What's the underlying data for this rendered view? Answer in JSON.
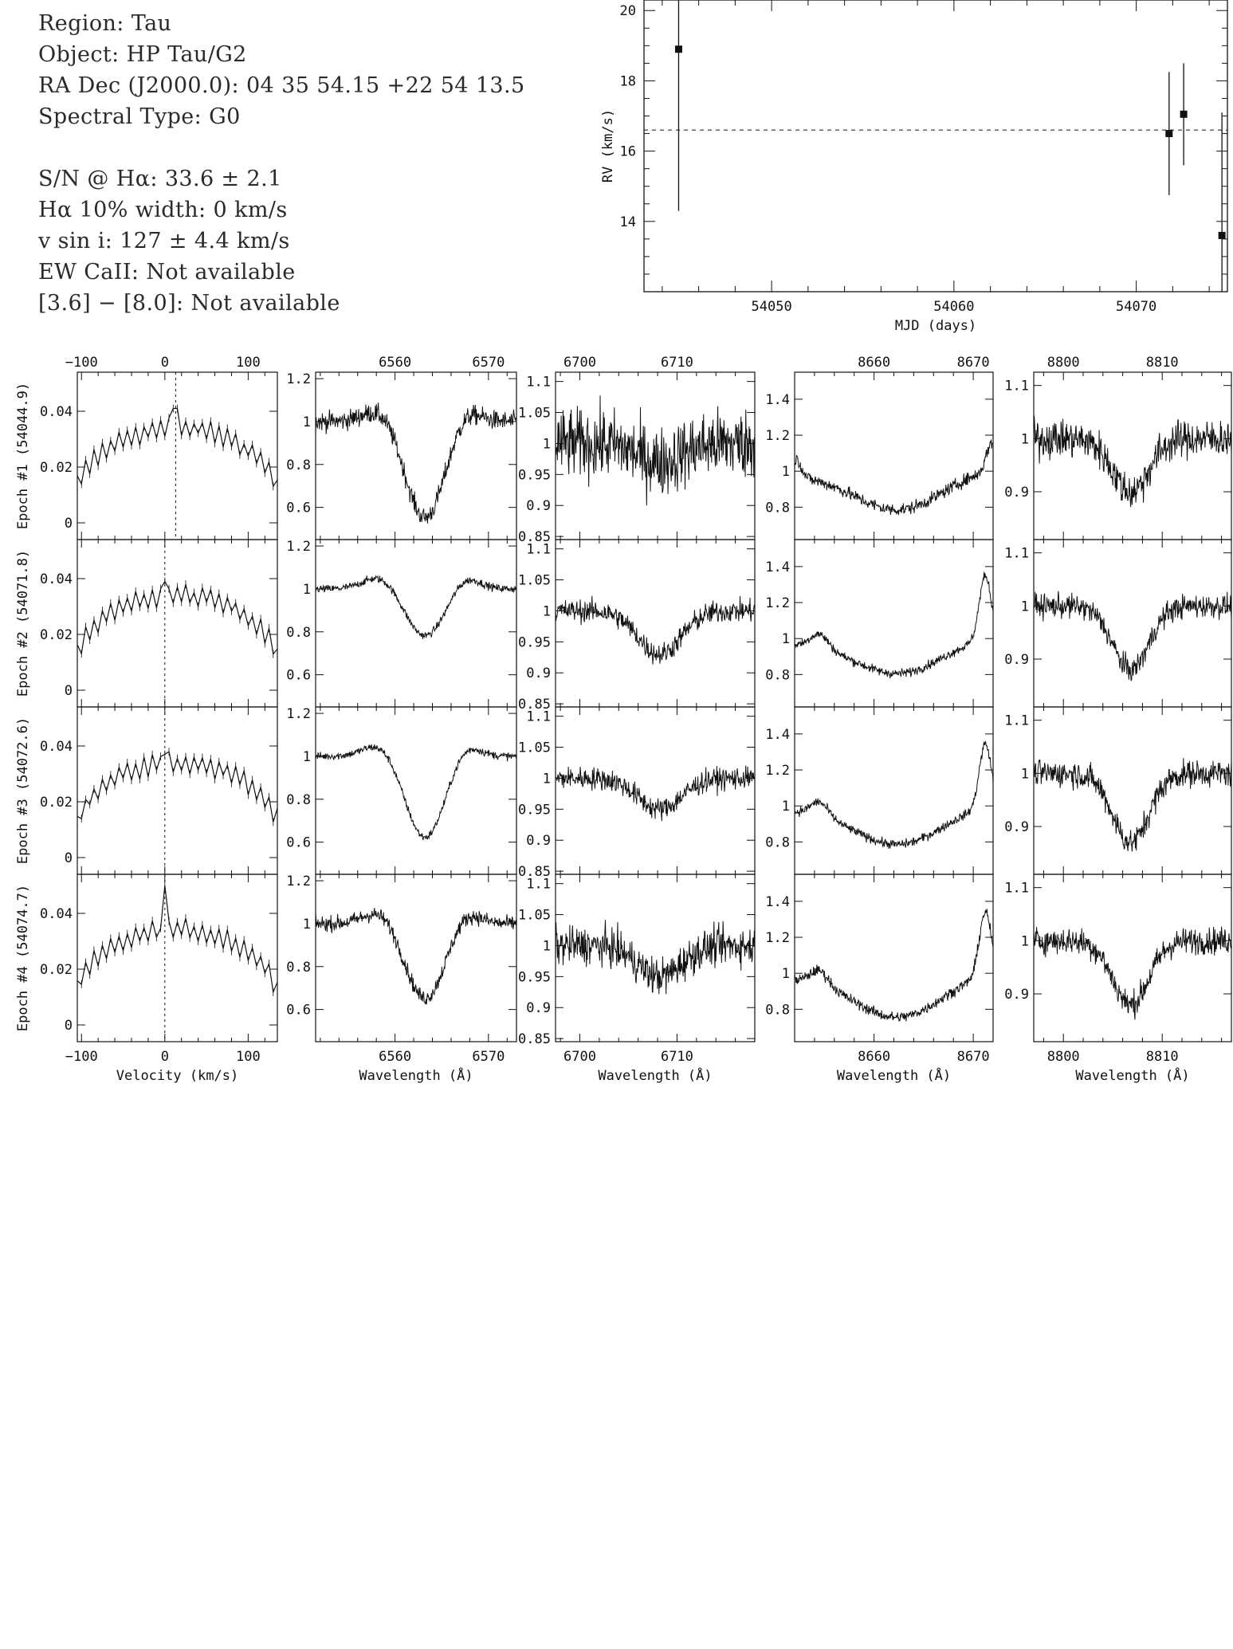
{
  "header": {
    "lines": [
      "Region: Tau",
      "Object: HP Tau/G2",
      "RA Dec (J2000.0): 04 35 54.15 +22 54 13.5",
      "Spectral Type: G0",
      "",
      "S/N @ Hα: 33.6 ± 2.1",
      "Hα 10% width: 0 km/s",
      "v sin i: 127 ± 4.4 km/s",
      "EW CaII: Not available",
      "[3.6] − [8.0]: Not available"
    ]
  },
  "colors": {
    "ink": "#111111",
    "text": "#2a2a2a"
  },
  "chart_data": [
    {
      "id": "rv",
      "type": "scatter",
      "xlabel": "MJD (days)",
      "ylabel": "RV (km/s)",
      "xlim": [
        54043,
        54075
      ],
      "ylim": [
        12.0,
        20.3
      ],
      "xticks": [
        54050,
        54060,
        54070
      ],
      "yticks": [
        14,
        16,
        18,
        20
      ],
      "mean_line": 16.6,
      "points": [
        {
          "x": 54044.9,
          "y": 18.9,
          "err": 4.6
        },
        {
          "x": 54071.8,
          "y": 16.5,
          "err": 1.75
        },
        {
          "x": 54072.6,
          "y": 17.05,
          "err": 1.45
        },
        {
          "x": 54074.7,
          "y": 13.6,
          "err": 3.5
        }
      ]
    },
    {
      "id": "spectra",
      "type": "line",
      "epochs": [
        "Epoch #1 (54044.9)",
        "Epoch #2 (54071.8)",
        "Epoch #3 (54072.6)",
        "Epoch #4 (54074.7)"
      ],
      "panels": [
        {
          "name": "ccf",
          "xlabel": "Velocity (km/s)",
          "xlim": [
            -105,
            135
          ],
          "ylim": [
            -0.006,
            0.054
          ],
          "xticks": [
            -100,
            0,
            100
          ],
          "yticks": [
            0,
            0.02,
            0.04
          ],
          "center_by_epoch": [
            13,
            0,
            0,
            0
          ],
          "peak_by_epoch": [
            0.041,
            0.039,
            0.037,
            0.05
          ],
          "base": 0.005,
          "amp": 0.029
        },
        {
          "name": "halpha",
          "xlabel": "Wavelength (Å)",
          "xlim": [
            6551.5,
            6573
          ],
          "ylim": [
            0.45,
            1.23
          ],
          "xticks": [
            6560,
            6570
          ],
          "yticks": [
            0.6,
            0.8,
            1,
            1.2
          ],
          "line_center": 6563.2,
          "line_width": 2.1,
          "depth_by_epoch": [
            0.45,
            0.22,
            0.38,
            0.35
          ],
          "noise_by_epoch": [
            0.045,
            0.018,
            0.018,
            0.035
          ]
        },
        {
          "name": "lithium",
          "xlabel": "Wavelength (Å)",
          "xlim": [
            6697.5,
            6718
          ],
          "ylim": [
            0.845,
            1.115
          ],
          "xticks": [
            6700,
            6710
          ],
          "yticks": [
            0.85,
            0.9,
            0.95,
            1,
            1.05,
            1.1
          ],
          "line_center": 6708.2,
          "line_width": 2.2,
          "depth_by_epoch": [
            0.03,
            0.07,
            0.05,
            0.05
          ],
          "noise_by_epoch": [
            0.055,
            0.018,
            0.018,
            0.03
          ]
        },
        {
          "name": "caii",
          "xlabel": "Wavelength (Å)",
          "xlim": [
            8652,
            8672
          ],
          "ylim": [
            0.62,
            1.55
          ],
          "xticks": [
            8660,
            8670
          ],
          "yticks": [
            0.8,
            1,
            1.2,
            1.4
          ],
          "line_center": 8662.5,
          "line_width": 4.5,
          "depth_by_epoch": [
            0.22,
            0.2,
            0.22,
            0.25
          ],
          "noise_by_epoch": [
            0.035,
            0.025,
            0.025,
            0.03
          ]
        },
        {
          "name": "nir",
          "xlabel": "Wavelength (Å)",
          "xlim": [
            8797,
            8817
          ],
          "ylim": [
            0.81,
            1.125
          ],
          "xticks": [
            8800,
            8810
          ],
          "yticks": [
            0.9,
            1,
            1.1
          ],
          "line_center": 8806.8,
          "line_width": 1.8,
          "depth_by_epoch": [
            0.1,
            0.12,
            0.13,
            0.12
          ],
          "noise_by_epoch": [
            0.035,
            0.022,
            0.025,
            0.025
          ]
        }
      ]
    }
  ]
}
